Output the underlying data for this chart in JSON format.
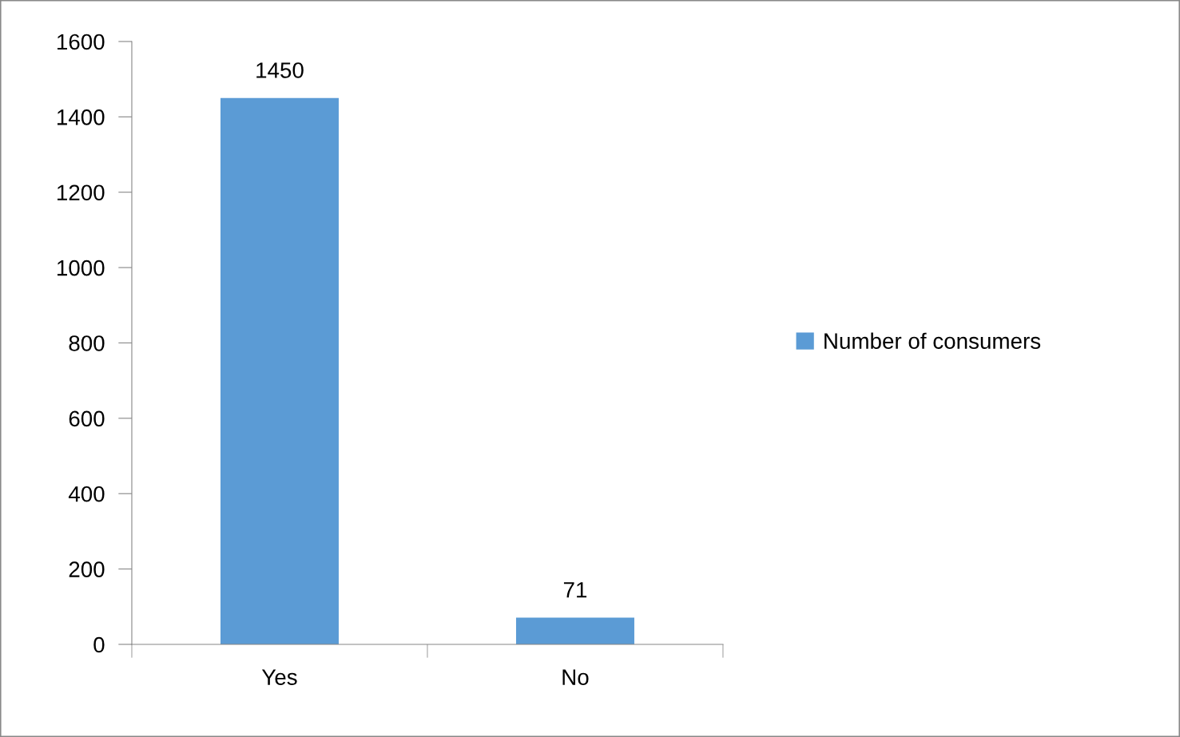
{
  "chart_data": {
    "type": "bar",
    "categories": [
      "Yes",
      "No"
    ],
    "series": [
      {
        "name": "Number of consumers",
        "color": "#5b9bd5",
        "values": [
          1450,
          71
        ]
      }
    ],
    "ylim": [
      0,
      1600
    ],
    "yticks": [
      0,
      200,
      400,
      600,
      800,
      1000,
      1200,
      1400,
      1600
    ],
    "data_labels": true,
    "legend": "right",
    "grid": false
  }
}
